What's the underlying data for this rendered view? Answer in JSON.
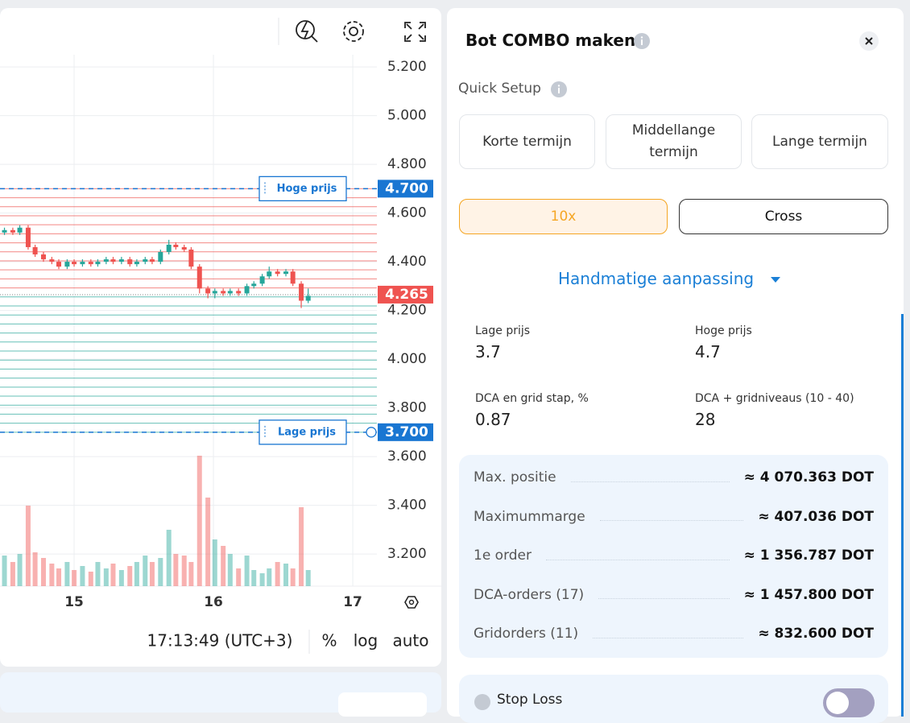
{
  "chart_data": {
    "type": "candlestick",
    "xlim": [
      14.468,
      17.173
    ],
    "xticks": [
      15,
      16,
      17
    ],
    "ylim": [
      3.068,
      5.25
    ],
    "yticks": [
      {
        "value": 5.2,
        "label": "5.200"
      },
      {
        "value": 5.0,
        "label": "5.000"
      },
      {
        "value": 4.8,
        "label": "4.800"
      },
      {
        "value": 4.6,
        "label": "4.600"
      },
      {
        "value": 4.4,
        "label": "4.400"
      },
      {
        "value": 4.2,
        "label": "4.200"
      },
      {
        "value": 4.0,
        "label": "4.000"
      },
      {
        "value": 3.8,
        "label": "3.800"
      },
      {
        "value": 3.6,
        "label": "3.600"
      },
      {
        "value": 3.4,
        "label": "3.400"
      },
      {
        "value": 3.2,
        "label": "3.200"
      }
    ],
    "grid": true,
    "up_color": "#26a69a",
    "down_color": "#ef5350",
    "x": [
      14.5,
      14.56,
      14.61,
      14.67,
      14.72,
      14.78,
      14.84,
      14.89,
      14.95,
      15.0,
      15.06,
      15.12,
      15.17,
      15.23,
      15.28,
      15.34,
      15.4,
      15.45,
      15.51,
      15.56,
      15.62,
      15.68,
      15.73,
      15.79,
      15.84,
      15.9,
      15.96,
      16.01,
      16.07,
      16.12,
      16.18,
      16.24,
      16.29,
      16.35,
      16.4,
      16.46,
      16.52,
      16.57,
      16.63,
      16.68
    ],
    "open": [
      4.52,
      4.53,
      4.52,
      4.54,
      4.46,
      4.43,
      4.41,
      4.4,
      4.38,
      4.4,
      4.39,
      4.4,
      4.39,
      4.4,
      4.41,
      4.4,
      4.41,
      4.39,
      4.4,
      4.41,
      4.4,
      4.44,
      4.47,
      4.46,
      4.45,
      4.38,
      4.29,
      4.27,
      4.28,
      4.27,
      4.28,
      4.27,
      4.3,
      4.31,
      4.34,
      4.36,
      4.35,
      4.36,
      4.31,
      4.24
    ],
    "close": [
      4.53,
      4.52,
      4.54,
      4.46,
      4.43,
      4.41,
      4.4,
      4.38,
      4.4,
      4.39,
      4.4,
      4.39,
      4.4,
      4.41,
      4.4,
      4.41,
      4.39,
      4.4,
      4.41,
      4.4,
      4.44,
      4.47,
      4.46,
      4.45,
      4.38,
      4.29,
      4.27,
      4.28,
      4.27,
      4.28,
      4.27,
      4.3,
      4.31,
      4.34,
      4.36,
      4.35,
      4.36,
      4.31,
      4.24,
      4.26
    ],
    "high": [
      4.54,
      4.54,
      4.55,
      4.55,
      4.47,
      4.44,
      4.42,
      4.41,
      4.41,
      4.41,
      4.41,
      4.41,
      4.41,
      4.42,
      4.42,
      4.42,
      4.42,
      4.41,
      4.42,
      4.42,
      4.45,
      4.49,
      4.48,
      4.47,
      4.46,
      4.39,
      4.3,
      4.29,
      4.29,
      4.29,
      4.29,
      4.31,
      4.32,
      4.35,
      4.38,
      4.37,
      4.37,
      4.37,
      4.32,
      4.29
    ],
    "low": [
      4.51,
      4.51,
      4.51,
      4.45,
      4.42,
      4.4,
      4.39,
      4.37,
      4.37,
      4.38,
      4.38,
      4.38,
      4.38,
      4.39,
      4.39,
      4.39,
      4.38,
      4.38,
      4.39,
      4.39,
      4.39,
      4.43,
      4.45,
      4.44,
      4.37,
      4.27,
      4.25,
      4.25,
      4.26,
      4.26,
      4.26,
      4.26,
      4.29,
      4.3,
      4.33,
      4.34,
      4.34,
      4.3,
      4.21,
      4.23
    ],
    "volume": [
      38,
      30,
      40,
      100,
      42,
      35,
      28,
      22,
      30,
      20,
      25,
      18,
      30,
      22,
      28,
      20,
      25,
      30,
      38,
      30,
      35,
      70,
      40,
      38,
      30,
      162,
      110,
      58,
      50,
      40,
      22,
      38,
      20,
      16,
      22,
      30,
      28,
      22,
      98,
      20
    ],
    "current_price": {
      "value": 4.265,
      "label": "4.265",
      "color": "#ef5350"
    },
    "price_lines": [
      {
        "name": "Hoge prijs",
        "value": 4.7,
        "label": "4.700",
        "color": "#1976d2"
      },
      {
        "name": "Lage prijs",
        "value": 3.7,
        "label": "3.700",
        "color": "#1976d2"
      }
    ]
  },
  "toolbar": {
    "time": "17:13:49 (UTC+3)",
    "scale_buttons": [
      "%",
      "log",
      "auto"
    ]
  },
  "panel": {
    "title": "Bot COMBO maken",
    "quick_setup": "Quick Setup",
    "presets": [
      "Korte termijn",
      "Middellange termijn",
      "Lange termijn"
    ],
    "leverage": "10x",
    "margin_mode": "Cross",
    "manual": "Handmatige aanpassing",
    "fields": [
      {
        "label": "Lage prijs",
        "value": 3.7
      },
      {
        "label": "Hoge prijs",
        "value": 4.7
      },
      {
        "label": "DCA en grid stap, %",
        "value": 0.87
      },
      {
        "label": "DCA + gridniveaus (10 - 40)",
        "value": 28
      }
    ],
    "summary": [
      {
        "label": "Max. positie",
        "value": "≈ 4 070.363 DOT"
      },
      {
        "label": "Maximummarge",
        "value": "≈ 407.036 DOT"
      },
      {
        "label": "1e order",
        "value": "≈ 1 356.787 DOT"
      },
      {
        "label": "DCA-orders (17)",
        "value": "≈ 1 457.800 DOT"
      },
      {
        "label": "Gridorders (11)",
        "value": "≈ 832.600 DOT"
      }
    ],
    "stop_loss": "Stop Loss"
  }
}
